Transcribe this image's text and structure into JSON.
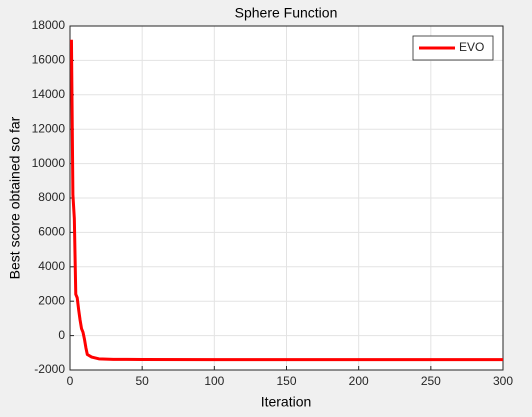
{
  "chart_data": {
    "type": "line",
    "title": "Sphere Function",
    "x_label": "Iteration",
    "y_label": "Best score obtained so far",
    "x": [
      1,
      2,
      3,
      4,
      5,
      6,
      7,
      8,
      9,
      10,
      11,
      12,
      15,
      20,
      30,
      50,
      100,
      200,
      300
    ],
    "series": [
      {
        "name": "EVO",
        "color": "#ff0000",
        "values": [
          17200,
          8200,
          6800,
          2400,
          2200,
          1500,
          900,
          400,
          200,
          -200,
          -700,
          -1100,
          -1250,
          -1350,
          -1380,
          -1390,
          -1400,
          -1400,
          -1400
        ]
      }
    ],
    "xlim": [
      0,
      300
    ],
    "xticks": [
      0,
      50,
      100,
      150,
      200,
      250,
      300
    ],
    "ylim": [
      -2000,
      18000
    ],
    "yticks": [
      -2000,
      0,
      2000,
      4000,
      6000,
      8000,
      10000,
      12000,
      14000,
      16000,
      18000
    ],
    "grid": true,
    "legend": "northeast"
  }
}
